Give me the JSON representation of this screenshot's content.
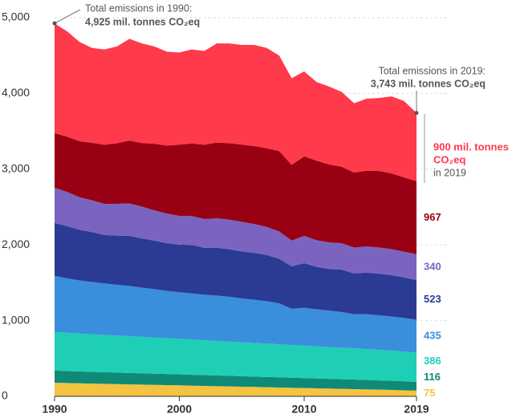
{
  "chart_data": {
    "type": "stacked_area",
    "x": [
      1990,
      1991,
      1992,
      1993,
      1994,
      1995,
      1996,
      1997,
      1998,
      1999,
      2000,
      2001,
      2002,
      2003,
      2004,
      2005,
      2006,
      2007,
      2008,
      2009,
      2010,
      2011,
      2012,
      2013,
      2014,
      2015,
      2016,
      2017,
      2018,
      2019
    ],
    "series": [
      {
        "color": "#f5c342",
        "values": [
          180,
          176,
          172,
          168,
          165,
          162,
          158,
          155,
          151,
          148,
          145,
          141,
          138,
          134,
          131,
          127,
          124,
          120,
          117,
          113,
          110,
          106,
          103,
          99,
          96,
          92,
          89,
          85,
          80,
          75
        ]
      },
      {
        "color": "#0f8a76",
        "values": [
          160,
          158,
          157,
          155,
          154,
          152,
          151,
          150,
          148,
          147,
          146,
          144,
          143,
          141,
          140,
          139,
          137,
          136,
          134,
          133,
          131,
          130,
          129,
          127,
          126,
          124,
          122,
          121,
          118,
          116
        ]
      },
      {
        "color": "#1fcfb5",
        "values": [
          510,
          505,
          500,
          496,
          492,
          488,
          484,
          480,
          476,
          472,
          468,
          464,
          460,
          456,
          452,
          448,
          444,
          440,
          436,
          430,
          428,
          424,
          420,
          416,
          412,
          408,
          404,
          398,
          392,
          386
        ]
      },
      {
        "color": "#3a8fdc",
        "values": [
          740,
          720,
          700,
          690,
          680,
          670,
          665,
          650,
          640,
          625,
          615,
          610,
          600,
          600,
          590,
          580,
          570,
          560,
          540,
          480,
          500,
          490,
          480,
          470,
          450,
          460,
          455,
          450,
          445,
          435
        ]
      },
      {
        "color": "#2b3a93",
        "values": [
          700,
          690,
          670,
          660,
          640,
          650,
          660,
          650,
          640,
          630,
          630,
          640,
          620,
          630,
          630,
          620,
          620,
          610,
          590,
          560,
          590,
          560,
          550,
          560,
          540,
          550,
          550,
          545,
          535,
          523
        ]
      },
      {
        "color": "#7a64c0",
        "values": [
          465,
          450,
          430,
          420,
          410,
          420,
          430,
          420,
          400,
          390,
          380,
          380,
          380,
          390,
          390,
          390,
          380,
          370,
          360,
          340,
          360,
          350,
          350,
          350,
          340,
          345,
          345,
          345,
          340,
          340
        ]
      },
      {
        "color": "#990013",
        "values": [
          720,
          730,
          740,
          760,
          780,
          800,
          830,
          840,
          880,
          900,
          940,
          960,
          980,
          1000,
          1010,
          1020,
          1030,
          1040,
          1060,
          1000,
          1050,
          1050,
          1030,
          1010,
          990,
          1000,
          1010,
          1000,
          980,
          967
        ]
      },
      {
        "color": "#ff3a4a",
        "values": [
          1450,
          1391,
          1311,
          1251,
          1259,
          1278,
          1342,
          1315,
          1285,
          1238,
          1216,
          1241,
          1239,
          1309,
          1317,
          1316,
          1335,
          1324,
          1263,
          1144,
          1121,
          1040,
          1028,
          988,
          916,
          951,
          965,
          1016,
          1010,
          900
        ]
      }
    ],
    "xlim": [
      1990,
      2019
    ],
    "xticks": [
      1990,
      2000,
      2010,
      2019
    ],
    "ylim": [
      0,
      5000
    ],
    "yticks": [
      0,
      {
        "value": 1000,
        "label": "1,000"
      },
      {
        "value": 2000,
        "label": "2,000"
      },
      {
        "value": 3000,
        "label": "3,000"
      },
      {
        "value": 4000,
        "label": "4,000"
      },
      {
        "value": 5000,
        "label": "5,000"
      }
    ],
    "grid": true,
    "annotations": {
      "start": [
        "Total emissions in 1990:",
        "4,925 mil. tonnes CO₂eq"
      ],
      "end": [
        "Total emissions in 2019:",
        "3,743 mil. tonnes CO₂eq"
      ],
      "top": [
        "900 mil. tonnes",
        "CO₂eq",
        "in 2019"
      ]
    }
  }
}
